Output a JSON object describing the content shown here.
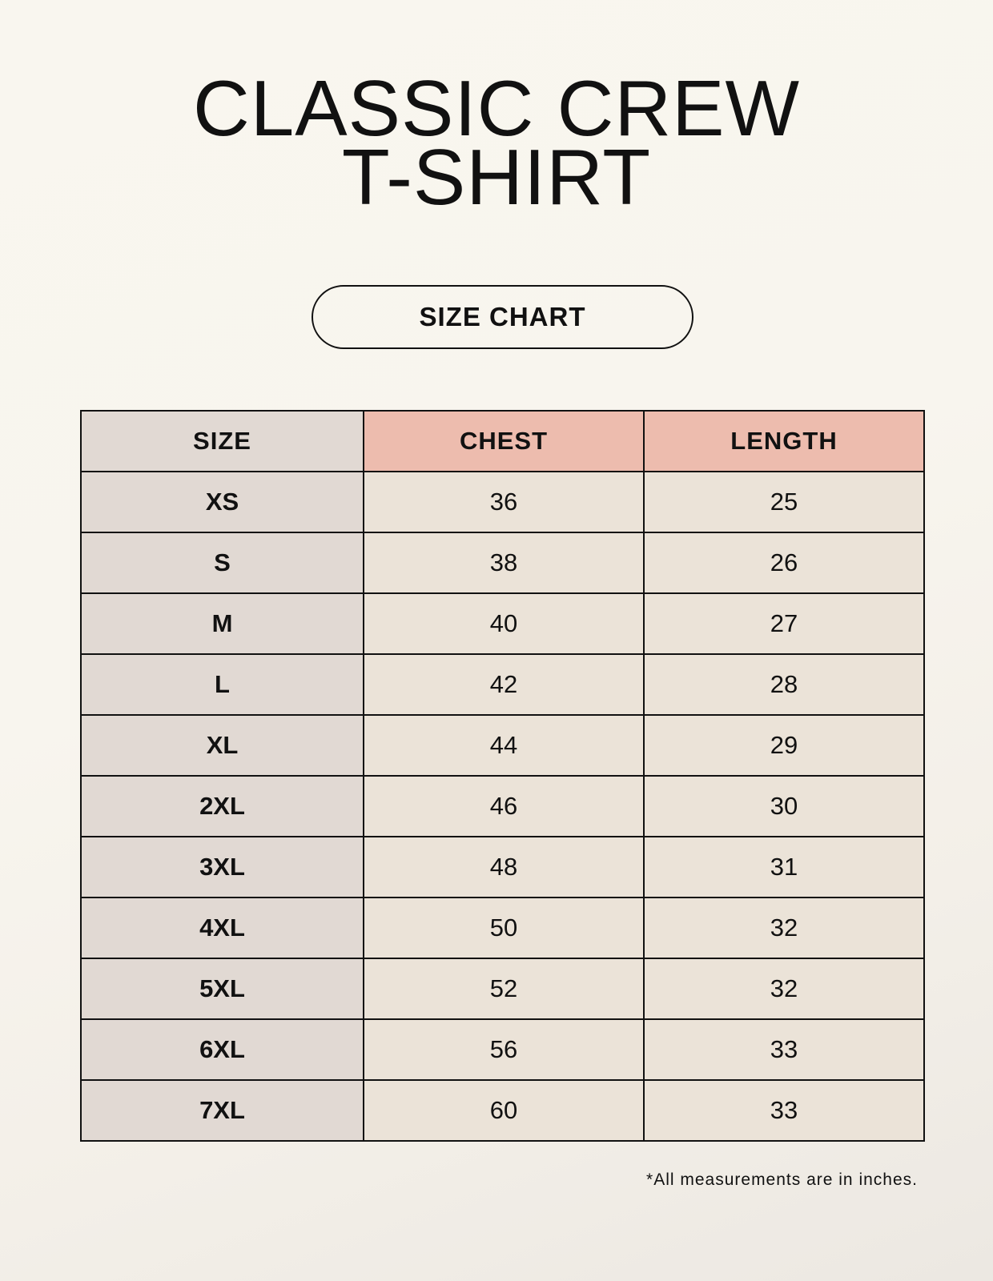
{
  "title": {
    "line1": "CLASSIC CREW",
    "line2": "T-SHIRT"
  },
  "badge": "SIZE CHART",
  "table": {
    "headers": [
      "SIZE",
      "CHEST",
      "LENGTH"
    ],
    "rows": [
      [
        "XS",
        "36",
        "25"
      ],
      [
        "S",
        "38",
        "26"
      ],
      [
        "M",
        "40",
        "27"
      ],
      [
        "L",
        "42",
        "28"
      ],
      [
        "XL",
        "44",
        "29"
      ],
      [
        "2XL",
        "46",
        "30"
      ],
      [
        "3XL",
        "48",
        "31"
      ],
      [
        "4XL",
        "50",
        "32"
      ],
      [
        "5XL",
        "52",
        "32"
      ],
      [
        "6XL",
        "56",
        "33"
      ],
      [
        "7XL",
        "60",
        "33"
      ]
    ]
  },
  "footnote": "*All measurements are in inches.",
  "colors": {
    "header_accent": "#edbcae",
    "size_column": "#e1d9d3",
    "value_cells": "#ebe3d8"
  }
}
